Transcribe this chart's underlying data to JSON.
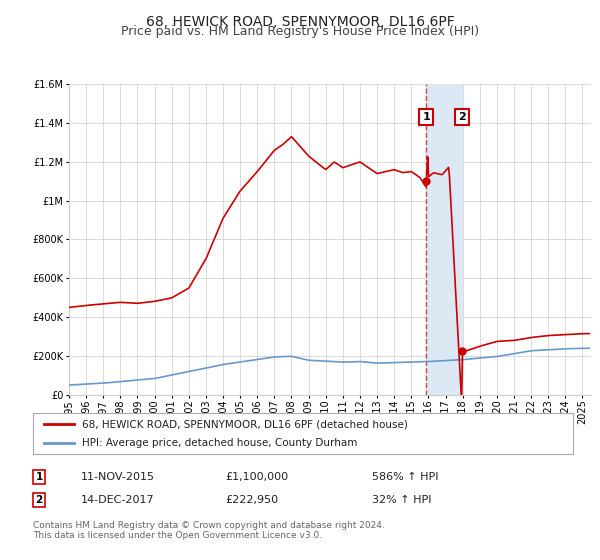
{
  "title": "68, HEWICK ROAD, SPENNYMOOR, DL16 6PF",
  "subtitle": "Price paid vs. HM Land Registry's House Price Index (HPI)",
  "ylim": [
    0,
    1600000
  ],
  "xlim_start": 1995.0,
  "xlim_end": 2025.5,
  "bg_color": "#ffffff",
  "grid_color": "#cccccc",
  "hpi_line_color": "#6699cc",
  "price_line_color": "#cc0000",
  "shade_color": "#dce9f5",
  "marker1_date": 2015.87,
  "marker2_date": 2017.96,
  "marker1_price": 1100000,
  "marker2_price": 222950,
  "legend_label1": "68, HEWICK ROAD, SPENNYMOOR, DL16 6PF (detached house)",
  "legend_label2": "HPI: Average price, detached house, County Durham",
  "annotation1_date": "11-NOV-2015",
  "annotation1_price": "£1,100,000",
  "annotation1_hpi": "586% ↑ HPI",
  "annotation2_date": "14-DEC-2017",
  "annotation2_price": "£222,950",
  "annotation2_hpi": "32% ↑ HPI",
  "footer1": "Contains HM Land Registry data © Crown copyright and database right 2024.",
  "footer2": "This data is licensed under the Open Government Licence v3.0.",
  "ytick_labels": [
    "£0",
    "£200K",
    "£400K",
    "£600K",
    "£800K",
    "£1M",
    "£1.2M",
    "£1.4M",
    "£1.6M"
  ],
  "ytick_values": [
    0,
    200000,
    400000,
    600000,
    800000,
    1000000,
    1200000,
    1400000,
    1600000
  ],
  "xtick_years": [
    1995,
    1996,
    1997,
    1998,
    1999,
    2000,
    2001,
    2002,
    2003,
    2004,
    2005,
    2006,
    2007,
    2008,
    2009,
    2010,
    2011,
    2012,
    2013,
    2014,
    2015,
    2016,
    2017,
    2018,
    2019,
    2020,
    2021,
    2022,
    2023,
    2024,
    2025
  ],
  "title_fontsize": 10,
  "subtitle_fontsize": 9,
  "tick_fontsize": 7,
  "legend_fontsize": 7.5,
  "annotation_fontsize": 8,
  "footer_fontsize": 6.5
}
